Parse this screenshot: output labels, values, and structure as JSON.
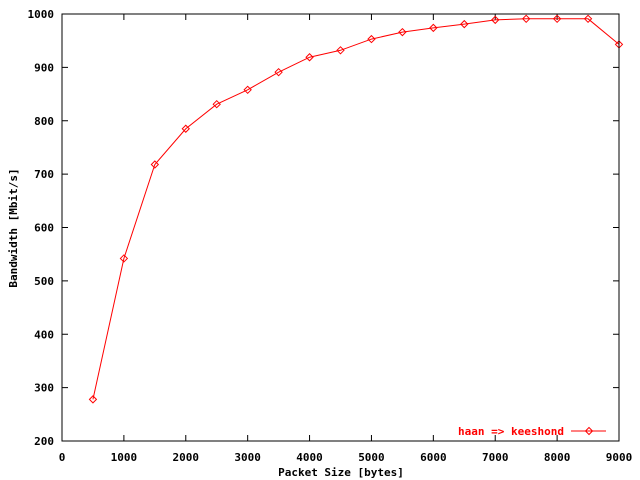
{
  "chart_data": {
    "type": "line",
    "title": "",
    "xlabel": "Packet Size [bytes]",
    "ylabel": "Bandwidth [Mbit/s]",
    "xlim": [
      0,
      9000
    ],
    "ylim": [
      200,
      1000
    ],
    "x_ticks": [
      0,
      1000,
      2000,
      3000,
      4000,
      5000,
      6000,
      7000,
      8000,
      9000
    ],
    "y_ticks": [
      200,
      300,
      400,
      500,
      600,
      700,
      800,
      900,
      1000
    ],
    "grid": false,
    "legend_position": "bottom-right",
    "series": [
      {
        "name": "haan => keeshond",
        "color": "#ff0000",
        "marker": "diamond",
        "x": [
          500,
          1000,
          1500,
          2000,
          2500,
          3000,
          3500,
          4000,
          4500,
          5000,
          5500,
          6000,
          6500,
          7000,
          7500,
          8000,
          8500,
          9000
        ],
        "y": [
          278,
          542,
          718,
          785,
          831,
          858,
          891,
          919,
          932,
          953,
          966,
          974,
          981,
          989,
          991,
          991,
          991,
          943
        ]
      }
    ]
  }
}
